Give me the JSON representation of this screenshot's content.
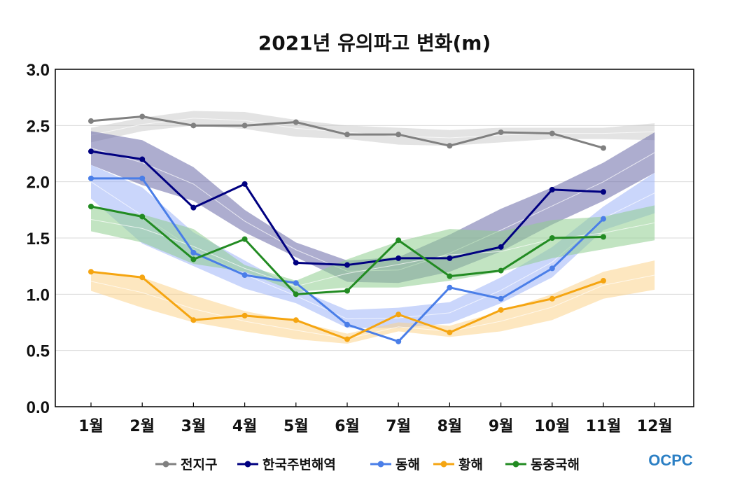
{
  "chart_data": {
    "type": "line",
    "title": "2021년 유의파고 변화(m)",
    "xlabel": "",
    "ylabel": "",
    "categories": [
      "1월",
      "2월",
      "3월",
      "4월",
      "5월",
      "6월",
      "7월",
      "8월",
      "9월",
      "10월",
      "11월",
      "12월"
    ],
    "ylim": [
      0,
      3
    ],
    "yticks": [
      "0.0",
      "0.5",
      "1.0",
      "1.5",
      "2.0",
      "2.5",
      "3.0"
    ],
    "grid": true,
    "legend_position": "bottom",
    "series": [
      {
        "name": "전지구",
        "color": "#808080",
        "band_color": "#cccccc",
        "values": [
          2.54,
          2.58,
          2.5,
          2.5,
          2.53,
          2.42,
          2.42,
          2.32,
          2.44,
          2.43,
          2.3,
          null
        ],
        "band_low": [
          2.35,
          2.45,
          2.5,
          2.47,
          2.4,
          2.38,
          2.33,
          2.32,
          2.35,
          2.38,
          2.38,
          2.37
        ],
        "band_high": [
          2.48,
          2.57,
          2.63,
          2.62,
          2.55,
          2.5,
          2.48,
          2.46,
          2.48,
          2.48,
          2.48,
          2.52
        ]
      },
      {
        "name": "한국주변해역",
        "color": "#000080",
        "band_color": "#6a6aa8",
        "values": [
          2.27,
          2.2,
          1.77,
          1.98,
          1.28,
          1.26,
          1.32,
          1.32,
          1.42,
          1.93,
          1.91,
          null
        ],
        "band_low": [
          2.15,
          1.97,
          1.83,
          1.55,
          1.33,
          1.11,
          1.1,
          1.2,
          1.38,
          1.62,
          1.83,
          2.08
        ],
        "band_high": [
          2.45,
          2.37,
          2.13,
          1.75,
          1.46,
          1.3,
          1.33,
          1.53,
          1.76,
          1.95,
          2.17,
          2.44
        ]
      },
      {
        "name": "동해",
        "color": "#4a7ee8",
        "band_color": "#9fb4f8",
        "values": [
          2.03,
          2.03,
          1.37,
          1.17,
          1.1,
          0.73,
          0.58,
          1.06,
          0.96,
          1.23,
          1.67,
          null
        ],
        "band_low": [
          1.85,
          1.45,
          1.25,
          1.05,
          0.92,
          0.7,
          0.7,
          0.74,
          0.92,
          1.15,
          1.57,
          1.72
        ],
        "band_high": [
          2.15,
          1.95,
          1.55,
          1.3,
          1.05,
          0.86,
          0.88,
          0.93,
          1.15,
          1.42,
          1.78,
          2.08
        ]
      },
      {
        "name": "황해",
        "color": "#f5a511",
        "band_color": "#fbd38d",
        "values": [
          1.2,
          1.15,
          0.77,
          0.81,
          0.77,
          0.6,
          0.82,
          0.66,
          0.86,
          0.96,
          1.12,
          null
        ],
        "band_low": [
          1.03,
          0.88,
          0.75,
          0.67,
          0.6,
          0.56,
          0.67,
          0.62,
          0.67,
          0.77,
          0.96,
          1.04
        ],
        "band_high": [
          1.2,
          1.15,
          0.99,
          0.85,
          0.76,
          0.65,
          0.75,
          0.72,
          0.85,
          1.0,
          1.2,
          1.3
        ]
      },
      {
        "name": "동중국해",
        "color": "#228b22",
        "band_color": "#8fce8f",
        "values": [
          1.78,
          1.69,
          1.31,
          1.49,
          1.0,
          1.03,
          1.48,
          1.16,
          1.21,
          1.5,
          1.51,
          null
        ],
        "band_low": [
          1.56,
          1.46,
          1.27,
          1.2,
          1.02,
          1.06,
          1.06,
          1.12,
          1.2,
          1.32,
          1.4,
          1.48
        ],
        "band_high": [
          1.77,
          1.71,
          1.58,
          1.26,
          1.12,
          1.31,
          1.47,
          1.58,
          1.56,
          1.66,
          1.69,
          1.79
        ]
      }
    ]
  },
  "logo": {
    "text": "OCPC",
    "color": "#2b7fc4"
  }
}
